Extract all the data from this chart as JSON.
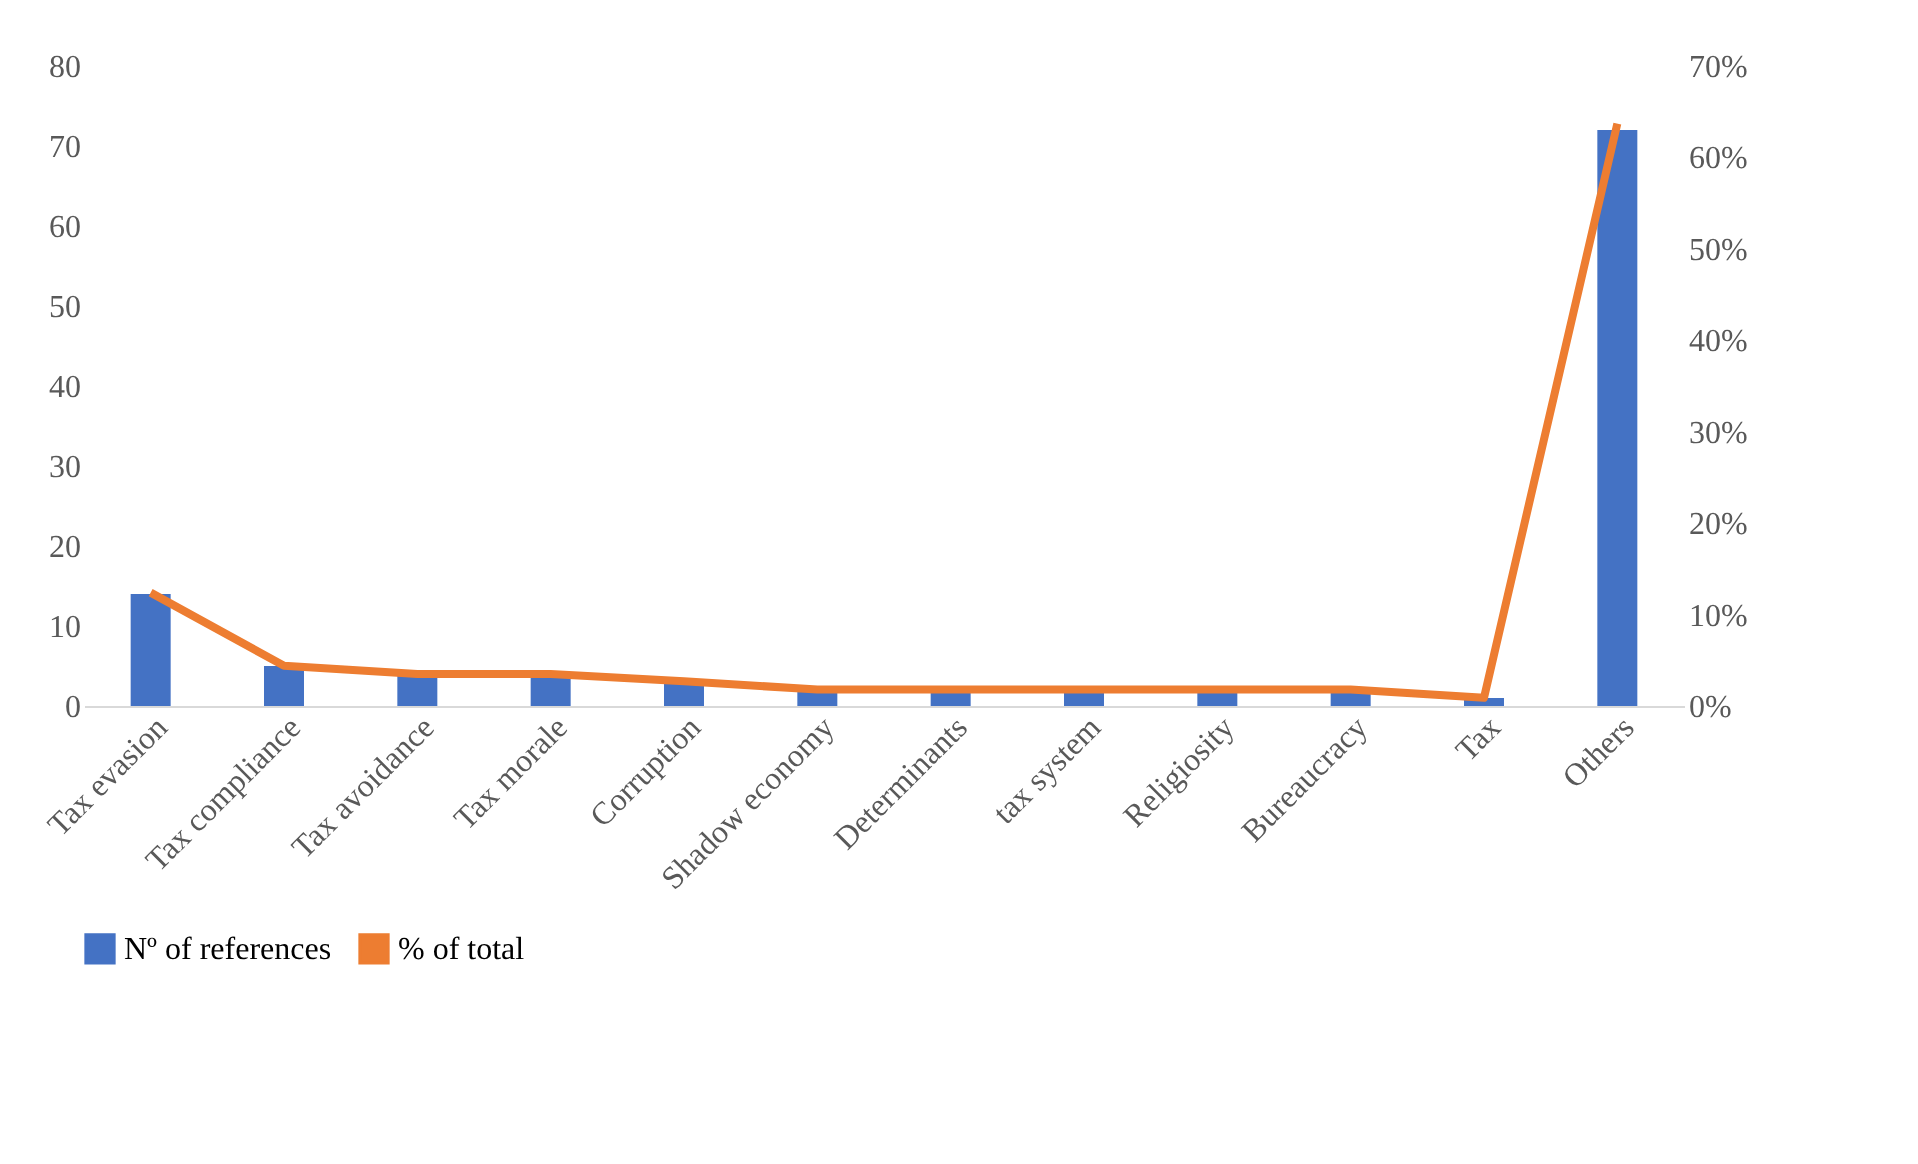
{
  "chart_data": {
    "type": "bar",
    "categories": [
      "Tax evasion",
      "Tax compliance",
      "Tax avoidance",
      "Tax morale",
      "Corruption",
      "Shadow economy",
      "Determinants",
      "tax system",
      "Religiosity",
      "Bureaucracy",
      "Tax",
      "Others"
    ],
    "series": [
      {
        "name": "Nº of references",
        "color": "#4472c4",
        "values": [
          14,
          5,
          4,
          4,
          3,
          2,
          2,
          2,
          2,
          2,
          1,
          72
        ]
      },
      {
        "name": "% of total",
        "type": "line",
        "axis": "y2",
        "color": "#ed7d31",
        "values": [
          12.4,
          4.4,
          3.5,
          3.5,
          2.7,
          1.8,
          1.8,
          1.8,
          1.8,
          1.8,
          0.9,
          63.7
        ]
      }
    ],
    "ylim": [
      0,
      80
    ],
    "yticks": [
      0,
      10,
      20,
      30,
      40,
      50,
      60,
      70,
      80
    ],
    "y2lim": [
      0,
      70
    ],
    "y2ticks": [
      {
        "value": 0,
        "label": "0%"
      },
      {
        "value": 10,
        "label": "10%"
      },
      {
        "value": 20,
        "label": "20%"
      },
      {
        "value": 30,
        "label": "30%"
      },
      {
        "value": 40,
        "label": "40%"
      },
      {
        "value": 50,
        "label": "50%"
      },
      {
        "value": 60,
        "label": "60%"
      },
      {
        "value": 70,
        "label": "70%"
      }
    ],
    "grid": false,
    "legend": "bottom",
    "marker": "none",
    "line_style": "solid"
  }
}
